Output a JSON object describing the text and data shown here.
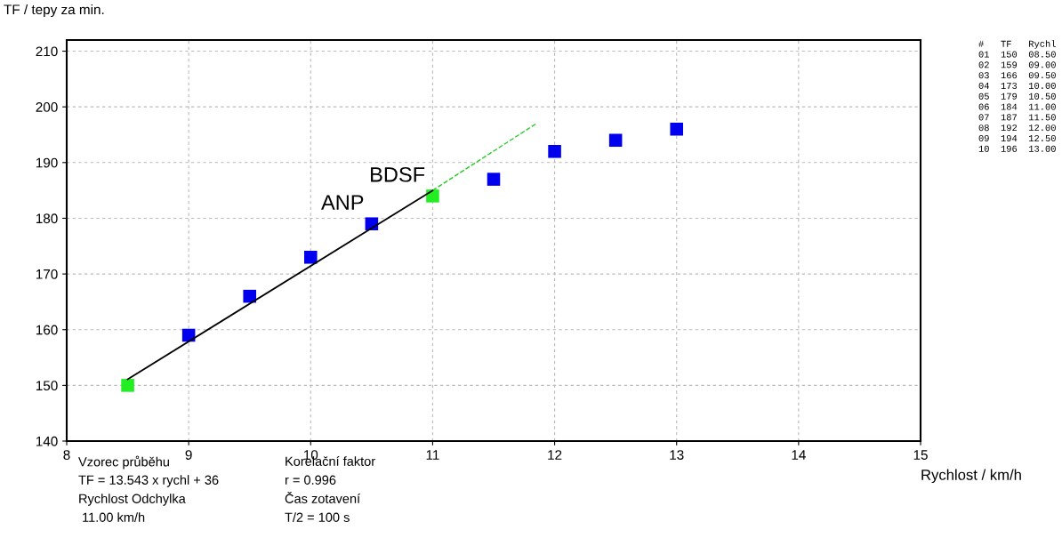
{
  "chart_data": {
    "type": "scatter",
    "xlabel": "Rychlost / km/h",
    "ylabel": "TF / tepy za min.",
    "xlim": [
      8,
      15
    ],
    "xticks": [
      8,
      9,
      10,
      11,
      12,
      13,
      14,
      15
    ],
    "ylim": [
      140,
      212
    ],
    "yticks": [
      140,
      150,
      160,
      170,
      180,
      190,
      200,
      210
    ],
    "grid": true,
    "marker": "square",
    "series": [
      {
        "color": "#0000ee",
        "x": [
          9,
          9.5,
          10,
          10.5,
          11.5,
          12,
          12.5,
          13
        ],
        "values": [
          159,
          166,
          173,
          179,
          187,
          192,
          194,
          196
        ]
      },
      {
        "color": "#22ee22",
        "x": [
          8.5,
          11
        ],
        "values": [
          150,
          184
        ]
      },
      {
        "type": "line",
        "color": "#000000",
        "marker": "none",
        "line_style": "solid",
        "x": [
          8.5,
          11
        ],
        "values": [
          151.1,
          185
        ]
      },
      {
        "type": "line",
        "color": "#22cc22",
        "marker": "none",
        "line_style": "dashed",
        "x": [
          11,
          11.85
        ],
        "values": [
          185,
          197
        ]
      }
    ],
    "annotations": [
      {
        "text": "ANP",
        "x": 10.5,
        "y": 179
      },
      {
        "text": "BDSF",
        "x": 11,
        "y": 184
      },
      "Vzorec průběhu",
      "TF = 13.543 x rychl + 36",
      "Rychlost Odchylka",
      " 11.00 km/h",
      "Korelační faktor",
      "r = 0.996",
      "Čas zotavení",
      "T/2 = 100 s",
      "#   TF   Rychl",
      "01  150  08.50",
      "02  159  09.00",
      "03  166  09.50",
      "04  173  10.00",
      "05  179  10.50",
      "06  184  11.00",
      "07  187  11.50",
      "08  192  12.00",
      "09  194  12.50",
      "10  196  13.00"
    ]
  }
}
